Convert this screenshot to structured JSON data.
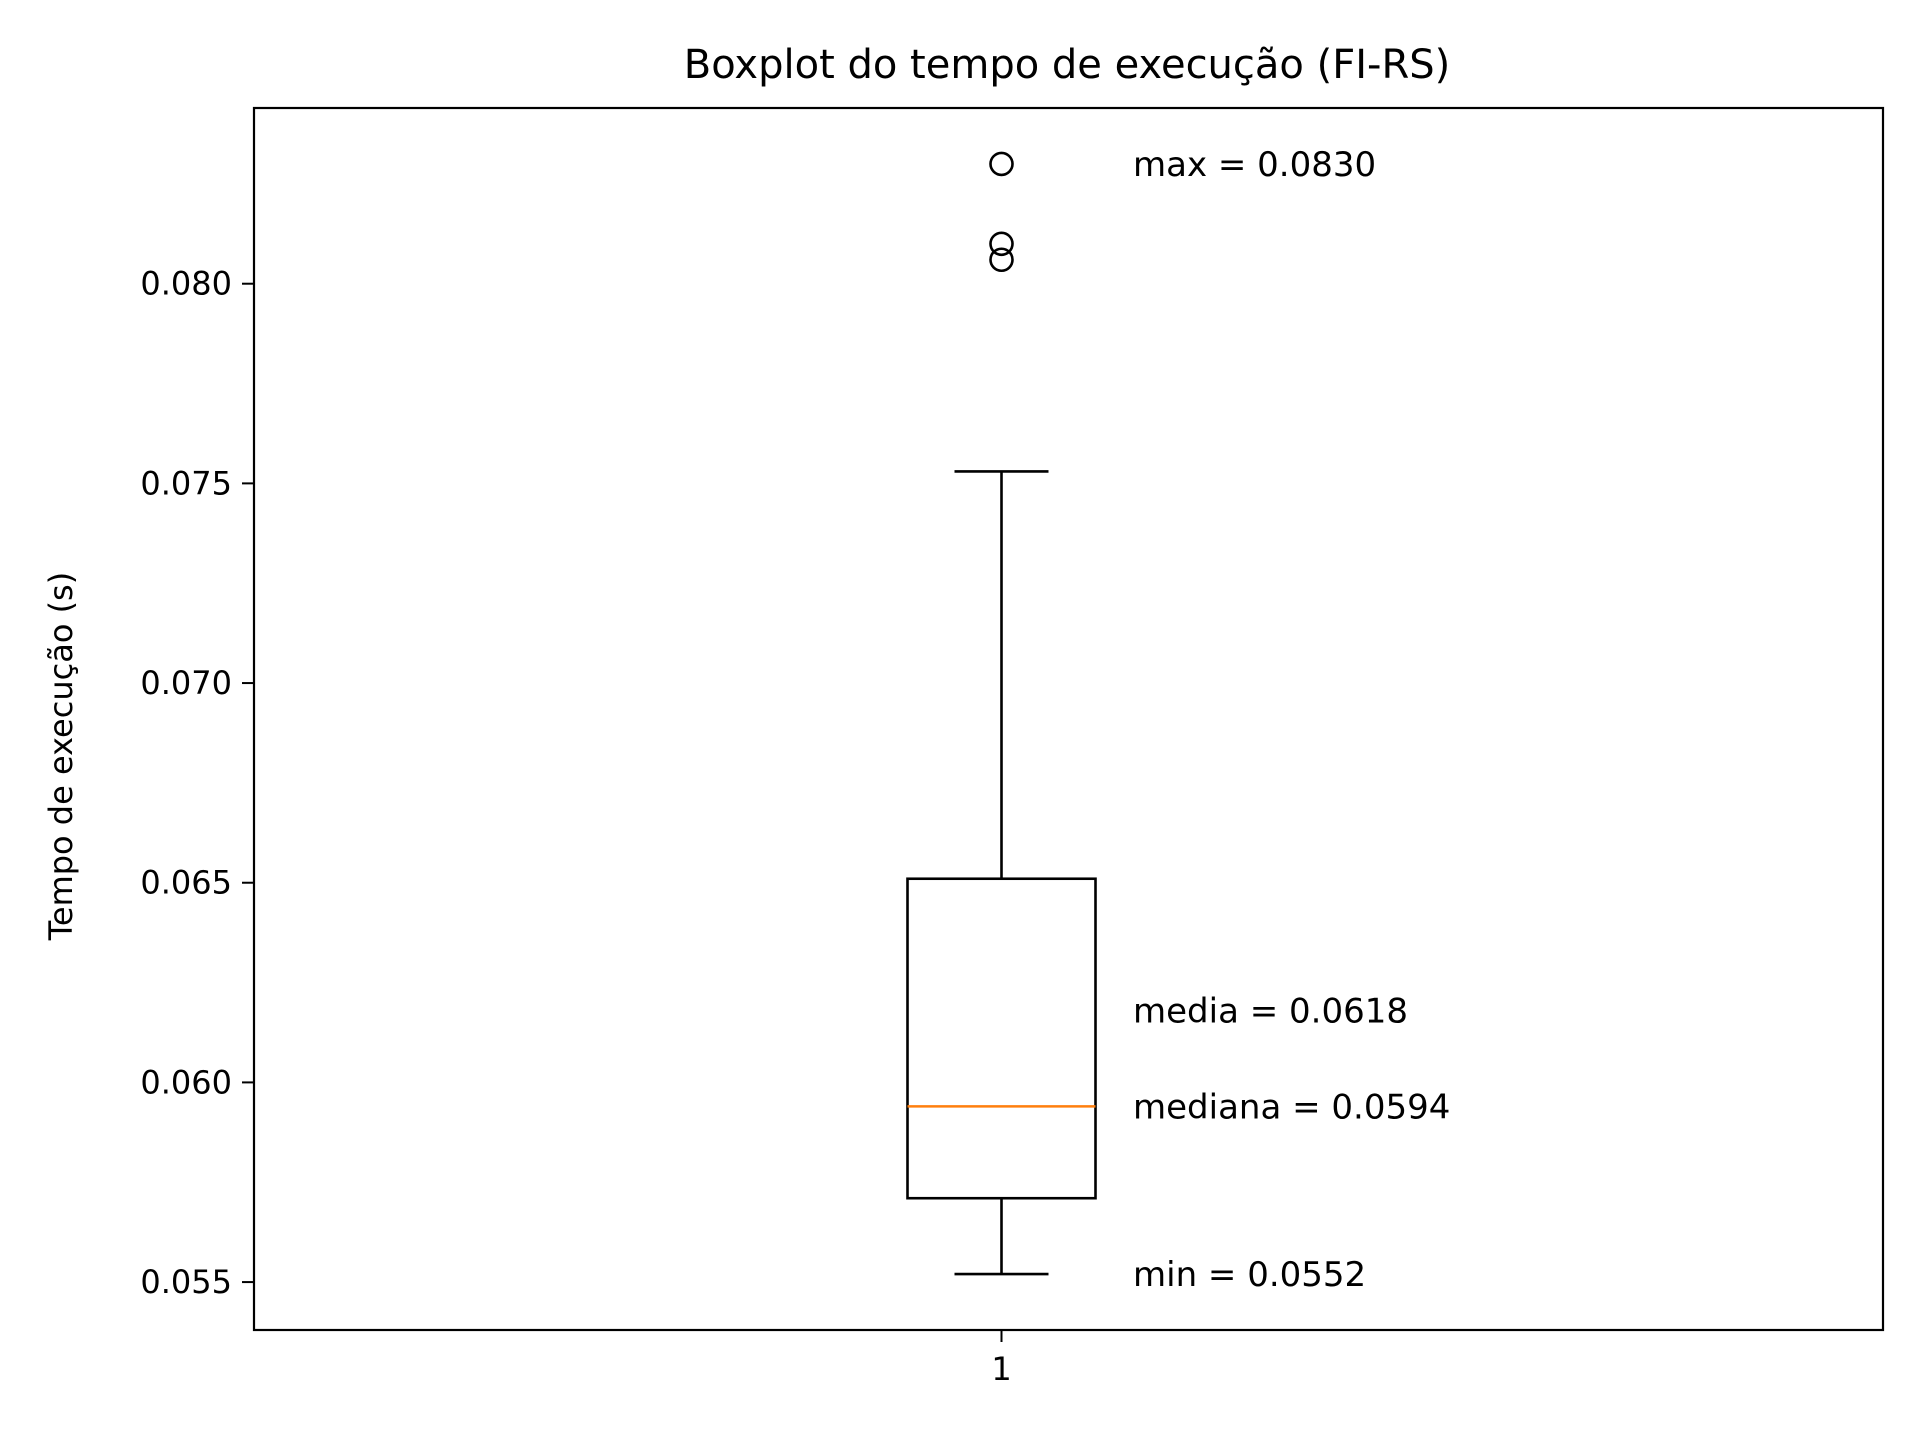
{
  "chart_data": {
    "type": "boxplot",
    "title": "Boxplot do tempo de execução (FI-RS)",
    "xlabel": "",
    "ylabel": "Tempo de execução (s)",
    "ylim": [
      0.0538,
      0.0844
    ],
    "categories": [
      "1"
    ],
    "y_ticks": [
      "0.055",
      "0.060",
      "0.065",
      "0.070",
      "0.075",
      "0.080"
    ],
    "box": {
      "whisker_low": 0.0552,
      "q1": 0.0571,
      "median": 0.0594,
      "q3": 0.0651,
      "whisker_high": 0.0753,
      "outliers": [
        0.0806,
        0.081,
        0.083
      ]
    },
    "colors": {
      "box": "#000000",
      "median": "#ff7f0e",
      "frame": "#000000"
    },
    "annotations": [
      {
        "text": "max = 0.0830",
        "y": 0.083
      },
      {
        "text": "media = 0.0618",
        "y": 0.0618
      },
      {
        "text": "mediana = 0.0594",
        "y": 0.0594
      },
      {
        "text": "min = 0.0552",
        "y": 0.0552
      }
    ],
    "grid": false,
    "legend": "none"
  }
}
